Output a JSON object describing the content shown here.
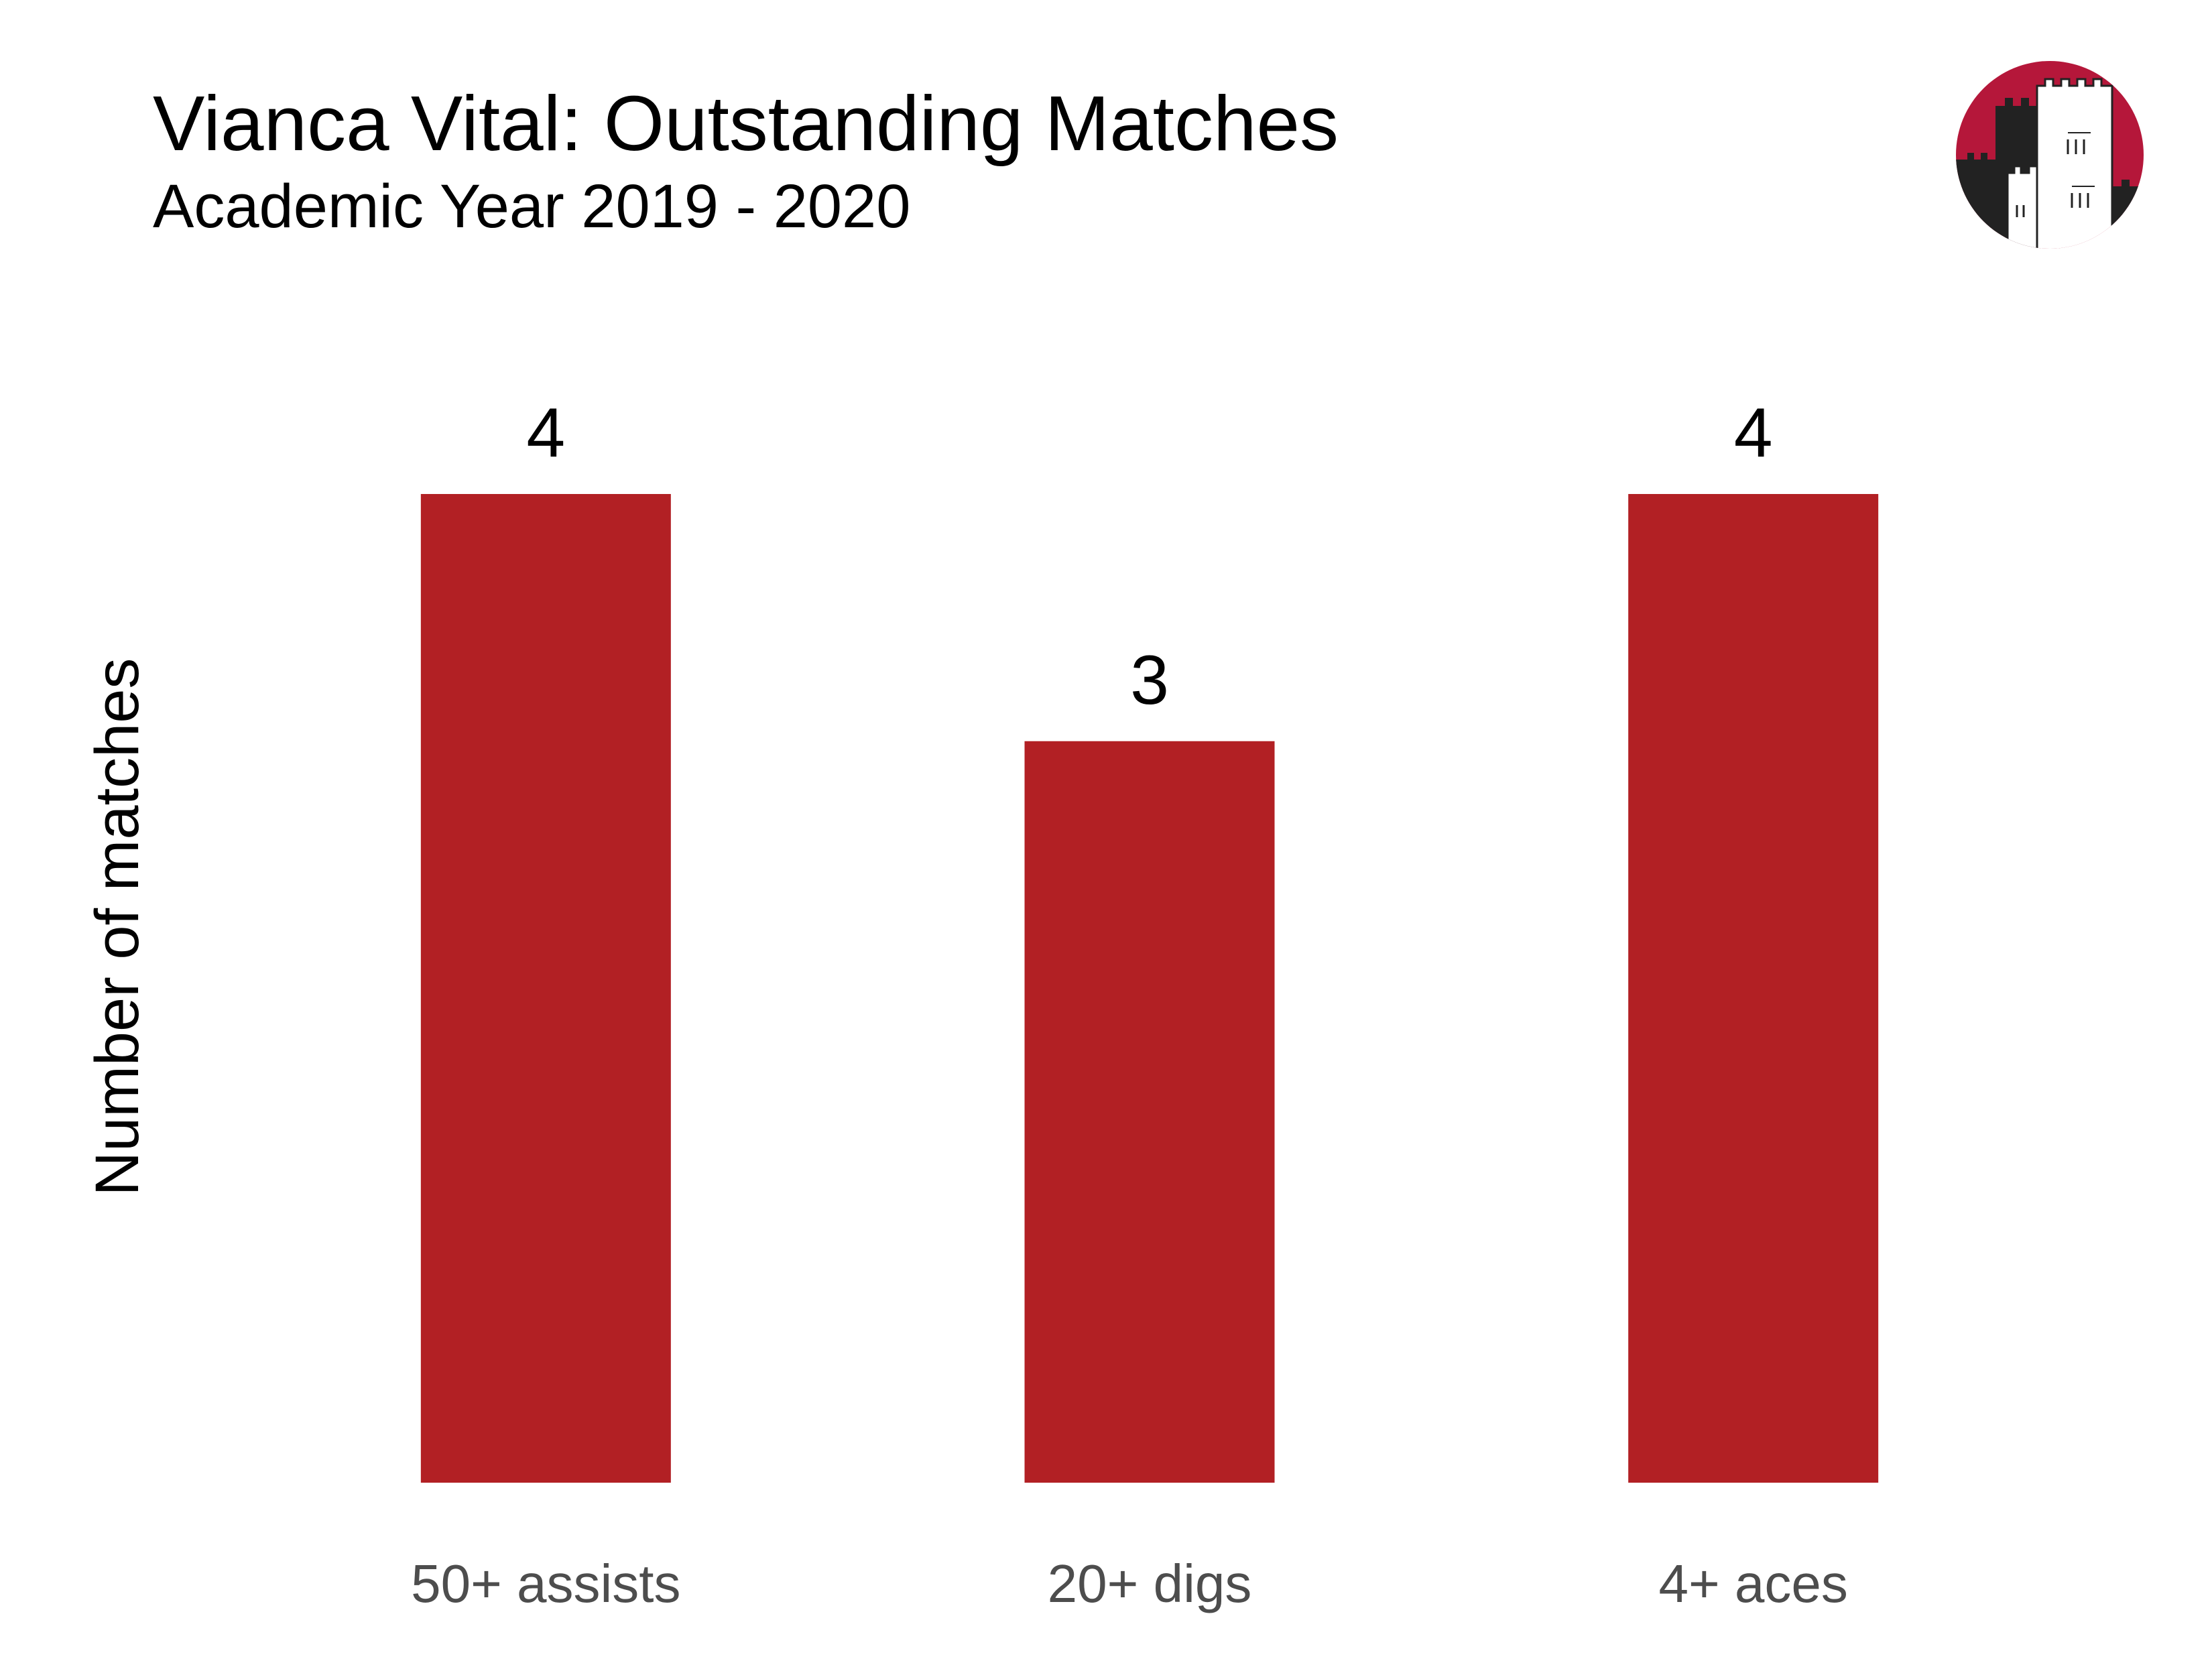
{
  "chart_data": {
    "type": "bar",
    "title": "Vianca Vital: Outstanding Matches",
    "subtitle": "Academic Year 2019 - 2020",
    "xlabel": "",
    "ylabel": "Number of matches",
    "categories": [
      "50+ assists",
      "20+ digs",
      "4+ aces"
    ],
    "values": [
      4,
      3,
      4
    ],
    "data_labels": [
      "4",
      "3",
      "4"
    ],
    "ylim": [
      0,
      4
    ],
    "grid": false,
    "legend": "none",
    "bar_color": "#b22024"
  },
  "logo": {
    "icon": "castle-tower-logo-icon",
    "background_color": "#b5173a",
    "tower_color": "#222222"
  }
}
